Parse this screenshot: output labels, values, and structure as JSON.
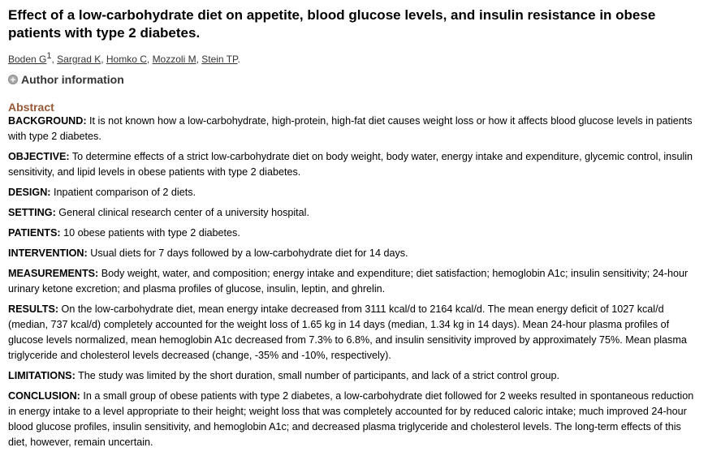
{
  "title": "Effect of a low-carbohydrate diet on appetite, blood glucose levels, and insulin resistance in obese patients with type 2 diabetes.",
  "authors": [
    {
      "name": "Boden G",
      "sup": "1"
    },
    {
      "name": "Sargrad K"
    },
    {
      "name": "Homko C"
    },
    {
      "name": "Mozzoli M"
    },
    {
      "name": "Stein TP"
    }
  ],
  "author_info_label": "Author information",
  "abstract_heading": "Abstract",
  "sections": [
    {
      "label": "BACKGROUND:",
      "text": "It is not known how a low-carbohydrate, high-protein, high-fat diet causes weight loss or how it affects blood glucose levels in patients with type 2 diabetes."
    },
    {
      "label": "OBJECTIVE:",
      "text": "To determine effects of a strict low-carbohydrate diet on body weight, body water, energy intake and expenditure, glycemic control, insulin sensitivity, and lipid levels in obese patients with type 2 diabetes."
    },
    {
      "label": "DESIGN:",
      "text": "Inpatient comparison of 2 diets."
    },
    {
      "label": "SETTING:",
      "text": "General clinical research center of a university hospital."
    },
    {
      "label": "PATIENTS:",
      "text": "10 obese patients with type 2 diabetes."
    },
    {
      "label": "INTERVENTION:",
      "text": "Usual diets for 7 days followed by a low-carbohydrate diet for 14 days."
    },
    {
      "label": "MEASUREMENTS:",
      "text": "Body weight, water, and composition; energy intake and expenditure; diet satisfaction; hemoglobin A1c; insulin sensitivity; 24-hour urinary ketone excretion; and plasma profiles of glucose, insulin, leptin, and ghrelin."
    },
    {
      "label": "RESULTS:",
      "text": "On the low-carbohydrate diet, mean energy intake decreased from 3111 kcal/d to 2164 kcal/d. The mean energy deficit of 1027 kcal/d (median, 737 kcal/d) completely accounted for the weight loss of 1.65 kg in 14 days (median, 1.34 kg in 14 days). Mean 24-hour plasma profiles of glucose levels normalized, mean hemoglobin A1c decreased from 7.3% to 6.8%, and insulin sensitivity improved by approximately 75%. Mean plasma triglyceride and cholesterol levels decreased (change, -35% and -10%, respectively)."
    },
    {
      "label": "LIMITATIONS:",
      "text": "The study was limited by the short duration, small number of participants, and lack of a strict control group."
    },
    {
      "label": "CONCLUSION:",
      "text": "In a small group of obese patients with type 2 diabetes, a low-carbohydrate diet followed for 2 weeks resulted in spontaneous reduction in energy intake to a level appropriate to their height; weight loss that was completely accounted for by reduced caloric intake; much improved 24-hour blood glucose profiles, insulin sensitivity, and hemoglobin A1c; and decreased plasma triglyceride and cholesterol levels. The long-term effects of this diet, however, remain uncertain."
    }
  ],
  "colors": {
    "abstract_heading": "#985735"
  }
}
